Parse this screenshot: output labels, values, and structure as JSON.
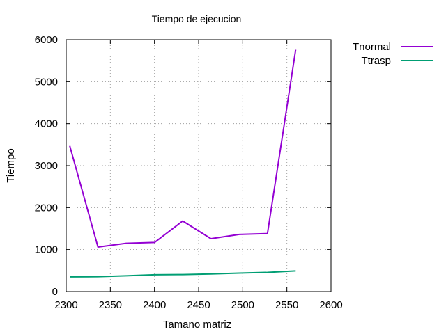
{
  "chart_data": {
    "type": "line",
    "title": "Tiempo de ejecucion",
    "xlabel": "Tamano matriz",
    "ylabel": "Tiempo",
    "xlim": [
      2300,
      2600
    ],
    "ylim": [
      0,
      6000
    ],
    "x_ticks": [
      2300,
      2350,
      2400,
      2450,
      2500,
      2550,
      2600
    ],
    "y_ticks": [
      0,
      1000,
      2000,
      3000,
      4000,
      5000,
      6000
    ],
    "grid": true,
    "legend_position": "outside-top-right",
    "series": [
      {
        "name": "Tnormal",
        "color": "#9400d3",
        "points": [
          [
            2304,
            3470
          ],
          [
            2336,
            1060
          ],
          [
            2368,
            1150
          ],
          [
            2400,
            1170
          ],
          [
            2432,
            1680
          ],
          [
            2464,
            1260
          ],
          [
            2496,
            1360
          ],
          [
            2528,
            1380
          ],
          [
            2560,
            5760
          ]
        ]
      },
      {
        "name": "Ttrasp",
        "color": "#009e73",
        "points": [
          [
            2304,
            350
          ],
          [
            2336,
            355
          ],
          [
            2368,
            375
          ],
          [
            2400,
            400
          ],
          [
            2432,
            405
          ],
          [
            2464,
            420
          ],
          [
            2496,
            440
          ],
          [
            2528,
            455
          ],
          [
            2560,
            490
          ]
        ]
      }
    ]
  }
}
